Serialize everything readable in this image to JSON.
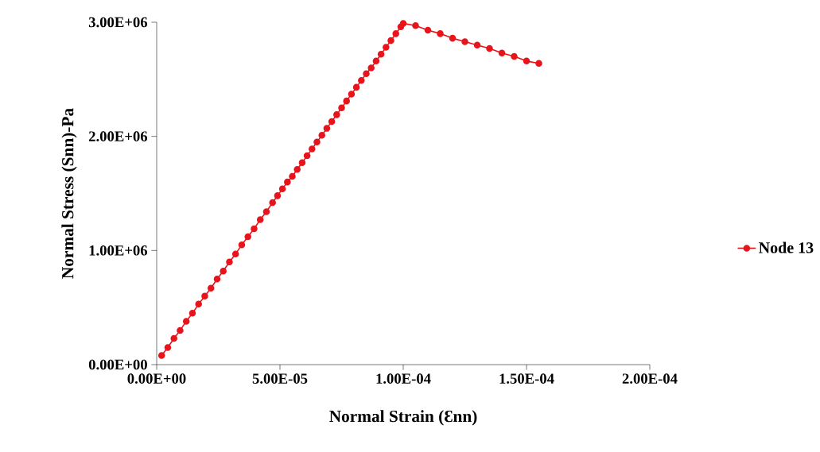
{
  "chart_data": {
    "type": "line",
    "xlabel": "Normal Strain (Ɛnn)",
    "ylabel": "Normal Stress (Snn)-Pa",
    "xlim": [
      0,
      0.0002
    ],
    "ylim": [
      0,
      3000000
    ],
    "xticks": [
      {
        "value": 0,
        "label": "0.00E+00"
      },
      {
        "value": 5e-05,
        "label": "5.00E-05"
      },
      {
        "value": 0.0001,
        "label": "1.00E-04"
      },
      {
        "value": 0.00015,
        "label": "1.50E-04"
      },
      {
        "value": 0.0002,
        "label": "2.00E-04"
      }
    ],
    "yticks": [
      {
        "value": 0,
        "label": "0.00E+00"
      },
      {
        "value": 1000000,
        "label": "1.00E+06"
      },
      {
        "value": 2000000,
        "label": "2.00E+06"
      },
      {
        "value": 3000000,
        "label": "3.00E+06"
      }
    ],
    "grid": false,
    "legend": "right",
    "marker": "circle",
    "line_style": "solid",
    "series": [
      {
        "name": "Node 13",
        "color": "#e8141c",
        "x": [
          2e-06,
          4.5e-06,
          7e-06,
          9.5e-06,
          1.2e-05,
          1.45e-05,
          1.7e-05,
          1.95e-05,
          2.2e-05,
          2.45e-05,
          2.7e-05,
          2.95e-05,
          3.2e-05,
          3.45e-05,
          3.7e-05,
          3.95e-05,
          4.2e-05,
          4.45e-05,
          4.7e-05,
          4.9e-05,
          5.1e-05,
          5.3e-05,
          5.5e-05,
          5.7e-05,
          5.9e-05,
          6.1e-05,
          6.3e-05,
          6.5e-05,
          6.7e-05,
          6.9e-05,
          7.1e-05,
          7.3e-05,
          7.5e-05,
          7.7e-05,
          7.9e-05,
          8.1e-05,
          8.3e-05,
          8.5e-05,
          8.7e-05,
          8.9e-05,
          9.1e-05,
          9.3e-05,
          9.5e-05,
          9.7e-05,
          9.9e-05,
          0.0001,
          0.000105,
          0.00011,
          0.000115,
          0.00012,
          0.000125,
          0.00013,
          0.000135,
          0.00014,
          0.000145,
          0.00015,
          0.000155
        ],
        "values": [
          80000,
          150000,
          230000,
          300000,
          380000,
          450000,
          530000,
          600000,
          670000,
          750000,
          820000,
          900000,
          970000,
          1050000,
          1120000,
          1190000,
          1270000,
          1340000,
          1420000,
          1480000,
          1540000,
          1600000,
          1650000,
          1710000,
          1770000,
          1830000,
          1890000,
          1950000,
          2010000,
          2070000,
          2130000,
          2190000,
          2250000,
          2310000,
          2370000,
          2430000,
          2490000,
          2550000,
          2600000,
          2660000,
          2720000,
          2780000,
          2840000,
          2900000,
          2960000,
          2990000,
          2970000,
          2930000,
          2900000,
          2860000,
          2830000,
          2800000,
          2770000,
          2730000,
          2700000,
          2660000,
          2640000
        ]
      }
    ]
  }
}
